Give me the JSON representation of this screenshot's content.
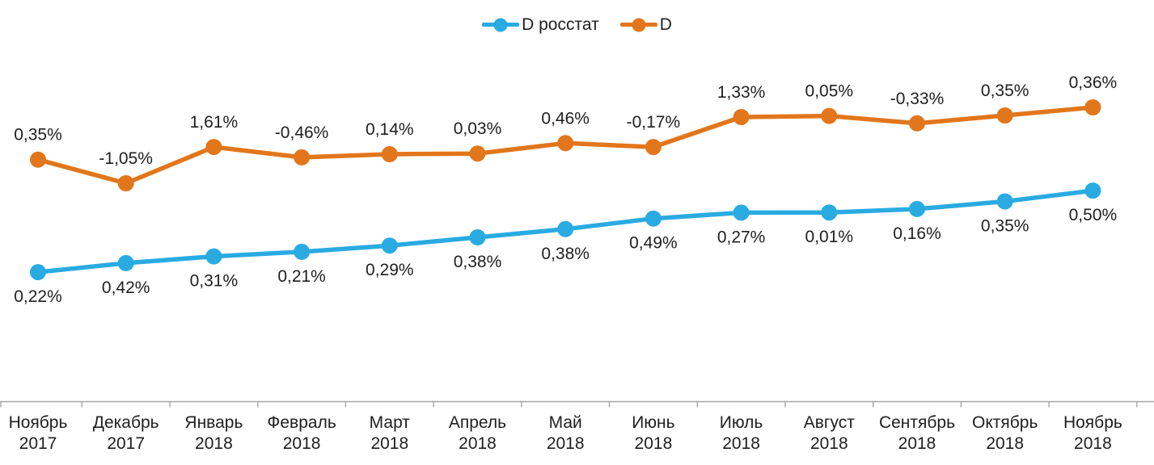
{
  "legend": {
    "items": [
      {
        "label": "D росстат",
        "color": "#29abe2"
      },
      {
        "label": "D",
        "color": "#e2761b"
      }
    ]
  },
  "chart_data": {
    "type": "line",
    "title": "",
    "xlabel": "",
    "ylabel": "",
    "categories": [
      {
        "month": "Ноябрь",
        "year": "2017"
      },
      {
        "month": "Декабрь",
        "year": "2017"
      },
      {
        "month": "Январь",
        "year": "2018"
      },
      {
        "month": "Февраль",
        "year": "2018"
      },
      {
        "month": "Март",
        "year": "2018"
      },
      {
        "month": "Апрель",
        "year": "2018"
      },
      {
        "month": "Май",
        "year": "2018"
      },
      {
        "month": "Июнь",
        "year": "2018"
      },
      {
        "month": "Июль",
        "year": "2018"
      },
      {
        "month": "Август",
        "year": "2018"
      },
      {
        "month": "Сентябрь",
        "year": "2018"
      },
      {
        "month": "Октябрь",
        "year": "2018"
      },
      {
        "month": "Ноябрь",
        "year": "2018"
      }
    ],
    "series": [
      {
        "name": "D росстат",
        "color": "#29abe2",
        "label_position": "below",
        "labels": [
          "0,22%",
          "0,42%",
          "0,31%",
          "0,21%",
          "0,29%",
          "0,38%",
          "0,38%",
          "0,49%",
          "0,27%",
          "0,01%",
          "0,16%",
          "0,35%",
          "0,50%"
        ],
        "monthly_values_pct": [
          0.22,
          0.42,
          0.31,
          0.21,
          0.29,
          0.38,
          0.38,
          0.49,
          0.27,
          0.01,
          0.16,
          0.35,
          0.5
        ],
        "plotted_cumulative_pct": [
          0.22,
          0.64,
          0.95,
          1.16,
          1.45,
          1.83,
          2.21,
          2.7,
          2.97,
          2.98,
          3.14,
          3.49,
          3.99
        ],
        "axis_range": [
          -4.74,
          9.63
        ]
      },
      {
        "name": "D",
        "color": "#e2761b",
        "label_position": "above",
        "labels": [
          "0,35%",
          "-1,05%",
          "1,61%",
          "-0,46%",
          "0,14%",
          "0,03%",
          "0,46%",
          "-0,17%",
          "1,33%",
          "0,05%",
          "-0,33%",
          "0,35%",
          "0,36%"
        ],
        "monthly_values_pct": [
          0.35,
          -1.05,
          1.61,
          -0.46,
          0.14,
          0.03,
          0.46,
          -0.17,
          1.33,
          0.05,
          -0.33,
          0.35,
          0.36
        ],
        "plotted_cumulative_pct": [
          0.35,
          -0.7,
          0.91,
          0.45,
          0.59,
          0.62,
          1.08,
          0.91,
          2.24,
          2.29,
          1.96,
          2.31,
          2.67
        ],
        "axis_range": [
          -9.41,
          4.39
        ]
      }
    ],
    "layout": {
      "legend_position": "top-center",
      "grid": false,
      "y_axis_visible": false,
      "x_axis_line_color": "#a6a6a6",
      "label_color": "#1f1f1f",
      "background": "#ffffff"
    }
  }
}
